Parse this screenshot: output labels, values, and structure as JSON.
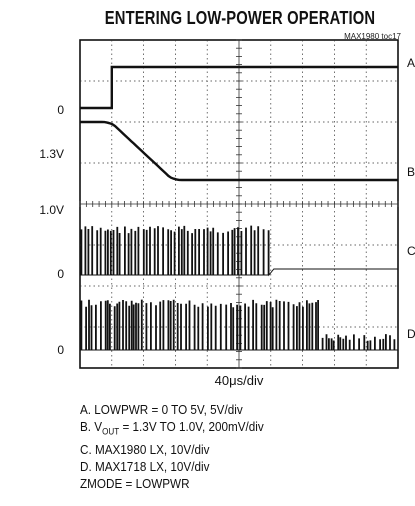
{
  "chart_data": {
    "type": "line",
    "title": "ENTERING LOW-POWER OPERATION",
    "figure_code": "MAX1980 toc17",
    "time_scale": "40μs/div",
    "grid": {
      "divisions_x": 10,
      "divisions_y": 8
    },
    "traces": [
      {
        "id": "A",
        "level_labels": [
          "0"
        ],
        "description": "LOWPWR = 0 TO 5V, 5V/div",
        "shape": "step",
        "step_div": 1.0
      },
      {
        "id": "B",
        "level_labels": [
          "1.3V",
          "1.0V"
        ],
        "description": "VOUT = 1.3V TO 1.0V, 200mV/div",
        "shape": "ramp",
        "ramp_start_div": 1.0,
        "ramp_end_div": 3.2
      },
      {
        "id": "C",
        "level_labels": [
          "0"
        ],
        "description": "MAX1980 LX, 10V/div",
        "shape": "switching",
        "stop_div": 6.0
      },
      {
        "id": "D",
        "level_labels": [
          "0"
        ],
        "description": "MAX1718 LX, 10V/div",
        "shape": "switching"
      }
    ],
    "legend_lines": [
      {
        "text": "A. LOWPWR = 0 TO 5V, 5V/div"
      },
      {
        "pre": "B. V",
        "sub": "OUT",
        "post": " = 1.3V TO 1.0V, 200mV/div"
      },
      {
        "text": "C. MAX1980 LX, 10V/div"
      },
      {
        "text": "D. MAX1718 LX, 10V/div"
      },
      {
        "text": "ZMODE = LOWPWR"
      }
    ]
  }
}
